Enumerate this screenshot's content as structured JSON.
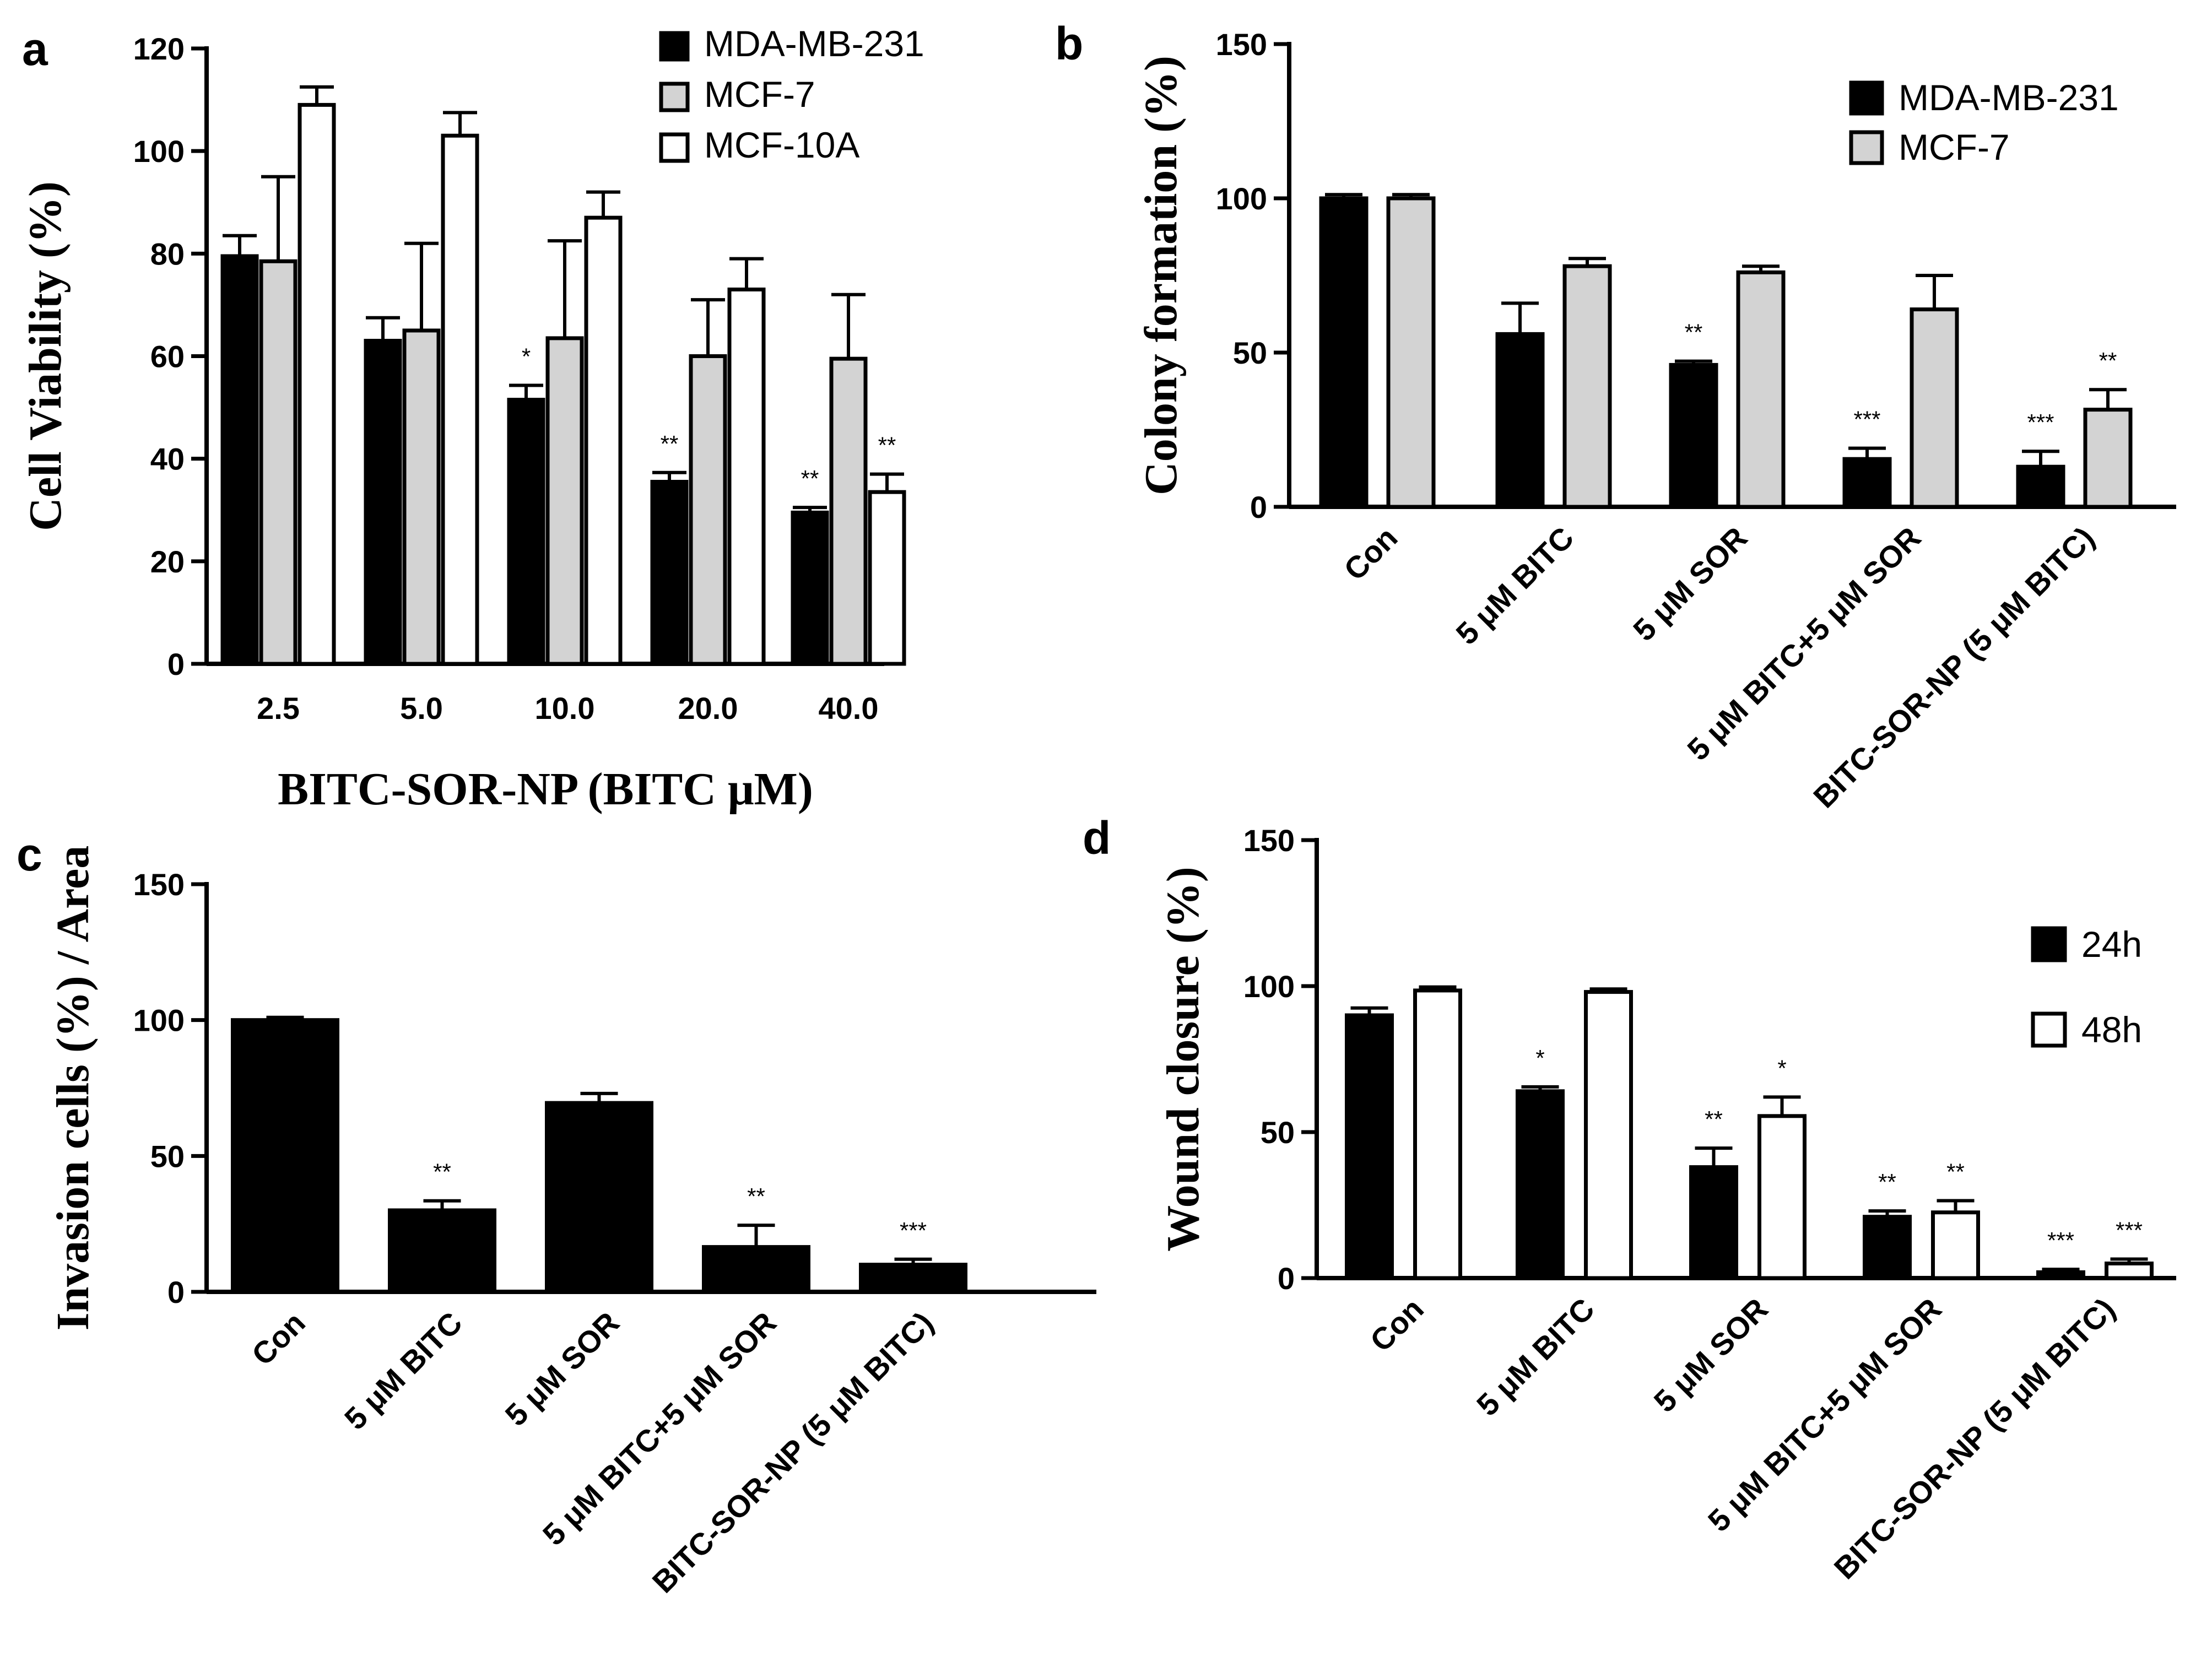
{
  "colors": {
    "black": "#000000",
    "gray": "#d3d3d3",
    "white": "#ffffff"
  },
  "chart_data": [
    {
      "panel": "a",
      "type": "bar",
      "ylabel": "Cell Viability (%)",
      "xlabel": "BITC-SOR-NP (BITC μM)",
      "ylim": [
        0,
        120
      ],
      "yticks": [
        "0",
        "20",
        "40",
        "60",
        "80",
        "100",
        "120"
      ],
      "categories": [
        "2.5",
        "5.0",
        "10.0",
        "20.0",
        "40.0"
      ],
      "legend_position": "top-right",
      "series": [
        {
          "name": "MDA-MB-231",
          "color": "#000000",
          "values": [
            79.5,
            63,
            51.5,
            35.5,
            29.5
          ],
          "errors": [
            4,
            4.5,
            2.8,
            1.8,
            1
          ],
          "sig": [
            "",
            "",
            "*",
            "**",
            "**"
          ]
        },
        {
          "name": "MCF-7",
          "color": "#d3d3d3",
          "values": [
            78.5,
            65,
            63.5,
            60,
            59.5
          ],
          "errors": [
            16.5,
            17,
            19,
            11,
            12.5
          ],
          "sig": [
            "",
            "",
            "",
            "",
            ""
          ]
        },
        {
          "name": "MCF-10A",
          "color": "#ffffff",
          "values": [
            109,
            103,
            87,
            73,
            33.5
          ],
          "errors": [
            3.5,
            4.5,
            5,
            6,
            3.5
          ],
          "sig": [
            "",
            "",
            "",
            "",
            "**"
          ]
        }
      ]
    },
    {
      "panel": "b",
      "type": "bar",
      "ylabel": "Colony formation (%)",
      "xlabel": "",
      "ylim": [
        0,
        150
      ],
      "yticks": [
        "0",
        "50",
        "100",
        "150"
      ],
      "categories": [
        "Con",
        "5 μM BITC",
        "5 μM SOR",
        "5 μM BITC+5 μM SOR",
        "BITC-SOR-NP (5 μM BITC)"
      ],
      "legend_position": "top-right",
      "series": [
        {
          "name": "MDA-MB-231",
          "color": "#000000",
          "values": [
            100,
            56,
            46,
            15.5,
            13
          ],
          "errors": [
            1.2,
            10,
            1.2,
            3.5,
            5
          ],
          "sig": [
            "",
            "",
            "**",
            "***",
            "***"
          ]
        },
        {
          "name": "MCF-7",
          "color": "#d3d3d3",
          "values": [
            100,
            78,
            76,
            64,
            31.5
          ],
          "errors": [
            1.2,
            2.5,
            2,
            11,
            6.5
          ],
          "sig": [
            "",
            "",
            "",
            "",
            "**"
          ]
        }
      ]
    },
    {
      "panel": "c",
      "type": "bar",
      "ylabel": "Invasion cells (%) / Area",
      "xlabel": "",
      "ylim": [
        0,
        150
      ],
      "yticks": [
        "0",
        "50",
        "100",
        "150"
      ],
      "categories": [
        "Con",
        "5 μM BITC",
        "5 μM SOR",
        "5 μM BITC+5 μM SOR",
        "BITC-SOR-NP (5 μM BITC)"
      ],
      "legend_position": "none",
      "series": [
        {
          "name": "Invasion",
          "color": "#000000",
          "values": [
            100,
            30,
            69.5,
            16.5,
            10
          ],
          "errors": [
            1,
            3.5,
            3.5,
            8,
            2
          ],
          "sig": [
            "",
            "**",
            "",
            "**",
            "***"
          ]
        }
      ]
    },
    {
      "panel": "d",
      "type": "bar",
      "ylabel": "Wound closure (%)",
      "xlabel": "",
      "ylim": [
        0,
        150
      ],
      "yticks": [
        "0",
        "50",
        "100",
        "150"
      ],
      "categories": [
        "Con",
        "5 μM BITC",
        "5 μM SOR",
        "5 μM BITC+5 μM SOR",
        "BITC-SOR-NP (5 μM BITC)"
      ],
      "legend_position": "right",
      "series": [
        {
          "name": "24h",
          "color": "#000000",
          "values": [
            90,
            64,
            38,
            21,
            2
          ],
          "errors": [
            2.5,
            1.5,
            6.5,
            2,
            1
          ],
          "sig": [
            "",
            "*",
            "**",
            "**",
            "***"
          ]
        },
        {
          "name": "48h",
          "color": "#ffffff",
          "values": [
            98.5,
            98,
            55.5,
            22.5,
            5
          ],
          "errors": [
            1.2,
            1,
            6.5,
            4,
            1.5
          ],
          "sig": [
            "",
            "",
            "*",
            "**",
            "***"
          ]
        }
      ]
    }
  ]
}
